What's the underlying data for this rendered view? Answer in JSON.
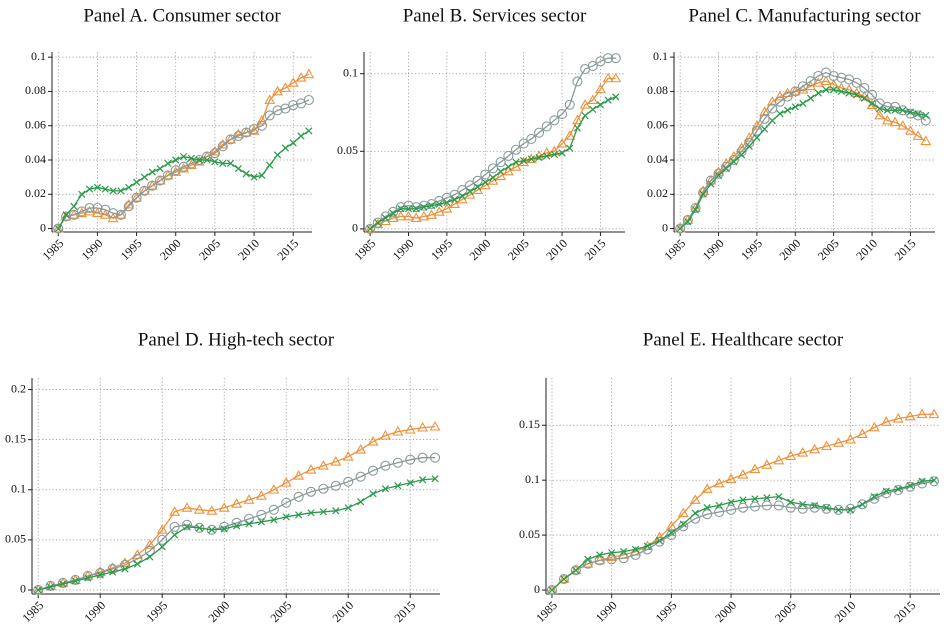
{
  "chart_data": [
    {
      "type": "line",
      "title": "Panel A. Consumer sector",
      "x": [
        1985,
        1986,
        1987,
        1988,
        1989,
        1990,
        1991,
        1992,
        1993,
        1994,
        1995,
        1996,
        1997,
        1998,
        1999,
        2000,
        2001,
        2002,
        2003,
        2004,
        2005,
        2006,
        2007,
        2008,
        2009,
        2010,
        2011,
        2012,
        2013,
        2014,
        2015,
        2016,
        2017
      ],
      "xlim": [
        1984.2,
        2017.4
      ],
      "xticks": [
        1985,
        1990,
        1995,
        2000,
        2005,
        2010,
        2015
      ],
      "ylim": [
        -0.002,
        0.103
      ],
      "yticks": [
        0,
        0.02,
        0.04,
        0.06,
        0.08,
        0.1
      ],
      "grid": true,
      "series": [
        {
          "color": "#f0913a",
          "marker": "triangle",
          "values": [
            0,
            0.007,
            0.008,
            0.009,
            0.01,
            0.009,
            0.008,
            0.006,
            0.008,
            0.014,
            0.018,
            0.022,
            0.025,
            0.028,
            0.031,
            0.033,
            0.035,
            0.037,
            0.039,
            0.042,
            0.045,
            0.049,
            0.052,
            0.055,
            0.056,
            0.057,
            0.063,
            0.075,
            0.08,
            0.082,
            0.085,
            0.088,
            0.09
          ]
        },
        {
          "color": "#8a9a9a",
          "marker": "circle",
          "values": [
            0,
            0.007,
            0.008,
            0.01,
            0.012,
            0.012,
            0.011,
            0.009,
            0.008,
            0.013,
            0.018,
            0.022,
            0.025,
            0.028,
            0.031,
            0.034,
            0.036,
            0.038,
            0.04,
            0.042,
            0.044,
            0.048,
            0.052,
            0.054,
            0.056,
            0.058,
            0.06,
            0.066,
            0.069,
            0.07,
            0.072,
            0.073,
            0.075
          ]
        },
        {
          "color": "#2a9a4a",
          "marker": "x",
          "values": [
            0,
            0.008,
            0.013,
            0.02,
            0.023,
            0.024,
            0.023,
            0.022,
            0.022,
            0.024,
            0.027,
            0.03,
            0.033,
            0.035,
            0.038,
            0.04,
            0.042,
            0.041,
            0.04,
            0.04,
            0.039,
            0.038,
            0.038,
            0.035,
            0.032,
            0.03,
            0.031,
            0.037,
            0.043,
            0.047,
            0.05,
            0.054,
            0.057
          ]
        }
      ]
    },
    {
      "type": "line",
      "title": "Panel B. Services sector",
      "x": [
        1985,
        1986,
        1987,
        1988,
        1989,
        1990,
        1991,
        1992,
        1993,
        1994,
        1995,
        1996,
        1997,
        1998,
        1999,
        2000,
        2001,
        2002,
        2003,
        2004,
        2005,
        2006,
        2007,
        2008,
        2009,
        2010,
        2011,
        2012,
        2013,
        2014,
        2015,
        2016,
        2017
      ],
      "xlim": [
        1984.2,
        2018.2
      ],
      "xticks": [
        1985,
        1990,
        1995,
        2000,
        2005,
        2010,
        2015
      ],
      "ylim": [
        -0.002,
        0.114
      ],
      "yticks": [
        0,
        0.05,
        0.1
      ],
      "grid": true,
      "series": [
        {
          "color": "#f0913a",
          "marker": "triangle",
          "values": [
            0,
            0.003,
            0.005,
            0.007,
            0.008,
            0.008,
            0.007,
            0.008,
            0.009,
            0.011,
            0.013,
            0.016,
            0.019,
            0.022,
            0.025,
            0.028,
            0.031,
            0.034,
            0.037,
            0.04,
            0.043,
            0.045,
            0.047,
            0.049,
            0.05,
            0.055,
            0.06,
            0.07,
            0.08,
            0.083,
            0.09,
            0.097,
            0.097
          ]
        },
        {
          "color": "#8a9a9a",
          "marker": "circle",
          "values": [
            0,
            0.004,
            0.008,
            0.011,
            0.014,
            0.015,
            0.014,
            0.015,
            0.016,
            0.018,
            0.02,
            0.022,
            0.025,
            0.028,
            0.031,
            0.035,
            0.039,
            0.043,
            0.047,
            0.051,
            0.055,
            0.058,
            0.062,
            0.066,
            0.07,
            0.074,
            0.08,
            0.095,
            0.103,
            0.105,
            0.108,
            0.11,
            0.11
          ]
        },
        {
          "color": "#2a9a4a",
          "marker": "x",
          "values": [
            0,
            0.004,
            0.007,
            0.01,
            0.013,
            0.013,
            0.013,
            0.014,
            0.015,
            0.016,
            0.017,
            0.019,
            0.021,
            0.024,
            0.027,
            0.03,
            0.033,
            0.037,
            0.04,
            0.043,
            0.044,
            0.045,
            0.046,
            0.047,
            0.048,
            0.049,
            0.052,
            0.065,
            0.073,
            0.077,
            0.08,
            0.083,
            0.085
          ]
        }
      ]
    },
    {
      "type": "line",
      "title": "Panel C. Manufacturing sector",
      "x": [
        1985,
        1986,
        1987,
        1988,
        1989,
        1990,
        1991,
        1992,
        1993,
        1994,
        1995,
        1996,
        1997,
        1998,
        1999,
        2000,
        2001,
        2002,
        2003,
        2004,
        2005,
        2006,
        2007,
        2008,
        2009,
        2010,
        2011,
        2012,
        2013,
        2014,
        2015,
        2016,
        2017
      ],
      "xlim": [
        1984.2,
        2018.2
      ],
      "xticks": [
        1985,
        1990,
        1995,
        2000,
        2005,
        2010,
        2015
      ],
      "ylim": [
        -0.002,
        0.103
      ],
      "yticks": [
        0,
        0.02,
        0.04,
        0.06,
        0.08,
        0.1
      ],
      "grid": true,
      "series": [
        {
          "color": "#f0913a",
          "marker": "triangle",
          "values": [
            0,
            0.005,
            0.012,
            0.022,
            0.028,
            0.033,
            0.038,
            0.042,
            0.047,
            0.053,
            0.06,
            0.068,
            0.074,
            0.077,
            0.079,
            0.08,
            0.081,
            0.083,
            0.085,
            0.086,
            0.084,
            0.082,
            0.081,
            0.079,
            0.077,
            0.072,
            0.066,
            0.063,
            0.062,
            0.06,
            0.057,
            0.054,
            0.051
          ]
        },
        {
          "color": "#8a9a9a",
          "marker": "circle",
          "values": [
            0,
            0.005,
            0.012,
            0.021,
            0.028,
            0.032,
            0.036,
            0.04,
            0.045,
            0.05,
            0.057,
            0.064,
            0.07,
            0.074,
            0.077,
            0.08,
            0.083,
            0.086,
            0.089,
            0.091,
            0.089,
            0.088,
            0.087,
            0.085,
            0.082,
            0.078,
            0.073,
            0.071,
            0.071,
            0.069,
            0.067,
            0.066,
            0.063
          ]
        },
        {
          "color": "#2a9a4a",
          "marker": "x",
          "values": [
            0,
            0.004,
            0.011,
            0.02,
            0.026,
            0.031,
            0.035,
            0.039,
            0.043,
            0.048,
            0.053,
            0.058,
            0.063,
            0.067,
            0.069,
            0.071,
            0.073,
            0.076,
            0.079,
            0.081,
            0.081,
            0.08,
            0.079,
            0.078,
            0.076,
            0.073,
            0.07,
            0.069,
            0.069,
            0.069,
            0.068,
            0.067,
            0.066
          ]
        }
      ]
    },
    {
      "type": "line",
      "title": "Panel D. High-tech sector",
      "x": [
        1985,
        1986,
        1987,
        1988,
        1989,
        1990,
        1991,
        1992,
        1993,
        1994,
        1995,
        1996,
        1997,
        1998,
        1999,
        2000,
        2001,
        2002,
        2003,
        2004,
        2005,
        2006,
        2007,
        2008,
        2009,
        2010,
        2011,
        2012,
        2013,
        2014,
        2015,
        2016,
        2017
      ],
      "xlim": [
        1984.5,
        2017.4
      ],
      "xticks": [
        1985,
        1990,
        1995,
        2000,
        2005,
        2010,
        2015
      ],
      "ylim": [
        -0.004,
        0.2115
      ],
      "yticks": [
        0,
        0.05,
        0.1,
        0.15,
        0.2
      ],
      "grid": true,
      "series": [
        {
          "color": "#f0913a",
          "marker": "triangle",
          "values": [
            0,
            0.004,
            0.007,
            0.01,
            0.014,
            0.018,
            0.022,
            0.027,
            0.035,
            0.045,
            0.06,
            0.078,
            0.082,
            0.08,
            0.079,
            0.082,
            0.086,
            0.09,
            0.094,
            0.1,
            0.107,
            0.114,
            0.12,
            0.124,
            0.128,
            0.133,
            0.14,
            0.148,
            0.154,
            0.158,
            0.16,
            0.162,
            0.163
          ]
        },
        {
          "color": "#8a9a9a",
          "marker": "circle",
          "values": [
            0,
            0.004,
            0.007,
            0.01,
            0.014,
            0.017,
            0.021,
            0.025,
            0.031,
            0.039,
            0.05,
            0.063,
            0.065,
            0.062,
            0.06,
            0.063,
            0.067,
            0.071,
            0.075,
            0.08,
            0.087,
            0.093,
            0.098,
            0.101,
            0.104,
            0.108,
            0.113,
            0.119,
            0.124,
            0.127,
            0.13,
            0.132,
            0.132
          ]
        },
        {
          "color": "#2a9a4a",
          "marker": "x",
          "values": [
            0,
            0.003,
            0.006,
            0.009,
            0.012,
            0.015,
            0.018,
            0.021,
            0.026,
            0.033,
            0.043,
            0.055,
            0.063,
            0.062,
            0.06,
            0.061,
            0.064,
            0.066,
            0.068,
            0.07,
            0.073,
            0.075,
            0.077,
            0.078,
            0.079,
            0.082,
            0.088,
            0.096,
            0.101,
            0.104,
            0.107,
            0.11,
            0.111
          ]
        }
      ]
    },
    {
      "type": "line",
      "title": "Panel E. Healthcare sector",
      "x": [
        1985,
        1986,
        1987,
        1988,
        1989,
        1990,
        1991,
        1992,
        1993,
        1994,
        1995,
        1996,
        1997,
        1998,
        1999,
        2000,
        2001,
        2002,
        2003,
        2004,
        2005,
        2006,
        2007,
        2008,
        2009,
        2010,
        2011,
        2012,
        2013,
        2014,
        2015,
        2016,
        2017
      ],
      "xlim": [
        1984.5,
        2017.5
      ],
      "xticks": [
        1985,
        1990,
        1995,
        2000,
        2005,
        2010,
        2015
      ],
      "ylim": [
        -0.0036,
        0.193
      ],
      "yticks": [
        0,
        0.05,
        0.1,
        0.15
      ],
      "grid": true,
      "series": [
        {
          "color": "#f0913a",
          "marker": "triangle",
          "values": [
            0,
            0.01,
            0.018,
            0.024,
            0.027,
            0.03,
            0.032,
            0.035,
            0.04,
            0.048,
            0.058,
            0.07,
            0.082,
            0.092,
            0.097,
            0.101,
            0.105,
            0.11,
            0.114,
            0.118,
            0.122,
            0.125,
            0.128,
            0.131,
            0.134,
            0.137,
            0.142,
            0.148,
            0.153,
            0.156,
            0.158,
            0.16,
            0.16
          ]
        },
        {
          "color": "#8a9a9a",
          "marker": "circle",
          "values": [
            0,
            0.01,
            0.018,
            0.024,
            0.027,
            0.028,
            0.029,
            0.032,
            0.037,
            0.044,
            0.05,
            0.058,
            0.065,
            0.069,
            0.071,
            0.073,
            0.075,
            0.076,
            0.077,
            0.077,
            0.075,
            0.074,
            0.075,
            0.074,
            0.073,
            0.074,
            0.078,
            0.083,
            0.088,
            0.091,
            0.094,
            0.097,
            0.099
          ]
        },
        {
          "color": "#2a9a4a",
          "marker": "x",
          "values": [
            0,
            0.01,
            0.018,
            0.028,
            0.032,
            0.034,
            0.035,
            0.037,
            0.04,
            0.045,
            0.052,
            0.06,
            0.07,
            0.075,
            0.077,
            0.08,
            0.082,
            0.083,
            0.084,
            0.085,
            0.08,
            0.078,
            0.077,
            0.075,
            0.073,
            0.073,
            0.078,
            0.085,
            0.09,
            0.092,
            0.095,
            0.099,
            0.1
          ]
        }
      ]
    }
  ]
}
